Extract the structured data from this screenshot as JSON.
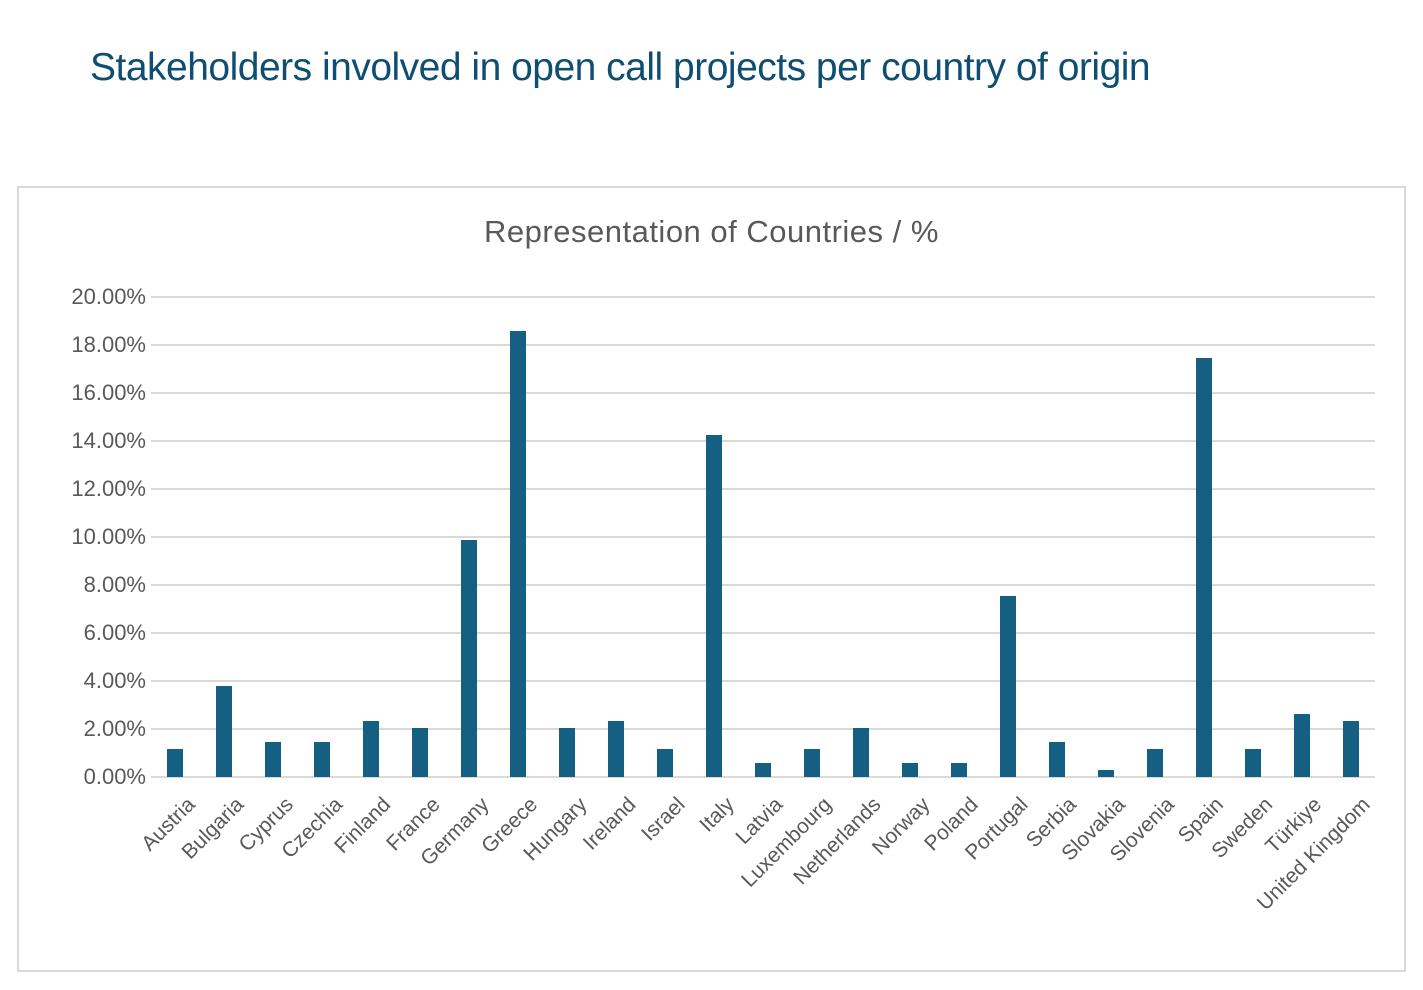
{
  "page_title": "Stakeholders involved in open call projects per country of origin",
  "colors": {
    "page_title": "#0F4E73",
    "chart_title": "#595959",
    "bar": "#156082",
    "gridline": "#D9D9D9",
    "tick_label": "#595959",
    "chart_border": "#D9D9D9"
  },
  "chart_data": {
    "type": "bar",
    "title": "Representation of Countries / %",
    "categories": [
      "Austria",
      "Bulgaria",
      "Cyprus",
      "Czechia",
      "Finland",
      "France",
      "Germany",
      "Greece",
      "Hungary",
      "Ireland",
      "Israel",
      "Italy",
      "Latvia",
      "Luxembourg",
      "Netherlands",
      "Norway",
      "Poland",
      "Portugal",
      "Serbia",
      "Slovakia",
      "Slovenia",
      "Spain",
      "Sweden",
      "Türkiye",
      "United Kingdom"
    ],
    "values": [
      1.16,
      3.78,
      1.45,
      1.45,
      2.33,
      2.03,
      9.88,
      18.6,
      2.03,
      2.33,
      1.16,
      14.24,
      0.58,
      1.16,
      2.03,
      0.58,
      0.58,
      7.56,
      1.45,
      0.29,
      1.16,
      17.44,
      1.16,
      2.62,
      2.33
    ],
    "unit": "%",
    "xlabel": "",
    "ylabel": "",
    "ylim": [
      0,
      20
    ],
    "ytick_step": 2,
    "ytick_labels": [
      "0.00%",
      "2.00%",
      "4.00%",
      "6.00%",
      "8.00%",
      "10.00%",
      "12.00%",
      "14.00%",
      "16.00%",
      "18.00%",
      "20.00%"
    ],
    "grid": "horizontal",
    "legend": "none",
    "x_label_rotation_deg": 45,
    "bar_color": "#156082"
  }
}
